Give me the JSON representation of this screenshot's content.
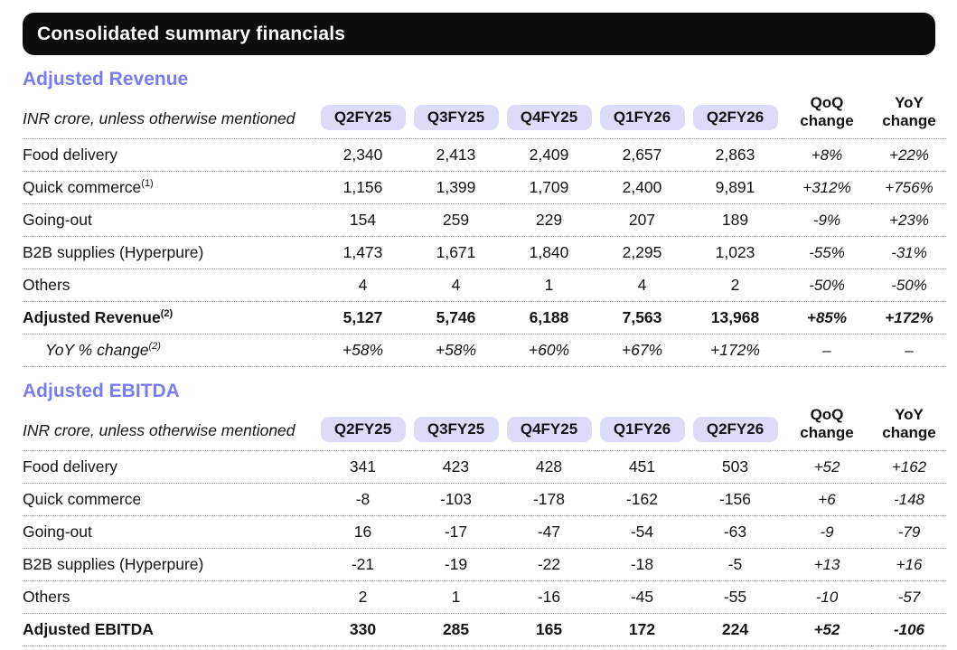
{
  "header": {
    "title": "Consolidated summary financials"
  },
  "colors": {
    "accent_purple": "#7b7bf2",
    "pill_background": "#dcdcf8",
    "title_bar_background": "#0d0d0f",
    "title_bar_text": "#ffffff",
    "body_text": "#141418",
    "divider_dotted": "#9c9c9c"
  },
  "tables": [
    {
      "title": "Adjusted Revenue",
      "unit_note": "INR crore, unless otherwise mentioned",
      "quarter_columns": [
        "Q2FY25",
        "Q3FY25",
        "Q4FY25",
        "Q1FY26",
        "Q2FY26"
      ],
      "change_columns": [
        "QoQ change",
        "YoY change"
      ],
      "rows": [
        {
          "label": "Food delivery",
          "sup": "",
          "values": [
            "2,340",
            "2,413",
            "2,409",
            "2,657",
            "2,863"
          ],
          "qoq": "+8%",
          "yoy": "+22%",
          "style": "normal"
        },
        {
          "label": "Quick commerce",
          "sup": "(1)",
          "values": [
            "1,156",
            "1,399",
            "1,709",
            "2,400",
            "9,891"
          ],
          "qoq": "+312%",
          "yoy": "+756%",
          "style": "normal"
        },
        {
          "label": "Going-out",
          "sup": "",
          "values": [
            "154",
            "259",
            "229",
            "207",
            "189"
          ],
          "qoq": "-9%",
          "yoy": "+23%",
          "style": "normal"
        },
        {
          "label": "B2B supplies (Hyperpure)",
          "sup": "",
          "values": [
            "1,473",
            "1,671",
            "1,840",
            "2,295",
            "1,023"
          ],
          "qoq": "-55%",
          "yoy": "-31%",
          "style": "normal"
        },
        {
          "label": "Others",
          "sup": "",
          "values": [
            "4",
            "4",
            "1",
            "4",
            "2"
          ],
          "qoq": "-50%",
          "yoy": "-50%",
          "style": "normal"
        },
        {
          "label": "Adjusted Revenue",
          "sup": "(2)",
          "values": [
            "5,127",
            "5,746",
            "6,188",
            "7,563",
            "13,968"
          ],
          "qoq": "+85%",
          "yoy": "+172%",
          "style": "total"
        },
        {
          "label": "YoY % change",
          "sup": "(2)",
          "values": [
            "+58%",
            "+58%",
            "+60%",
            "+67%",
            "+172%"
          ],
          "qoq": "–",
          "yoy": "–",
          "style": "subnote"
        }
      ]
    },
    {
      "title": "Adjusted EBITDA",
      "unit_note": "INR crore, unless otherwise mentioned",
      "quarter_columns": [
        "Q2FY25",
        "Q3FY25",
        "Q4FY25",
        "Q1FY26",
        "Q2FY26"
      ],
      "change_columns": [
        "QoQ change",
        "YoY change"
      ],
      "rows": [
        {
          "label": "Food delivery",
          "sup": "",
          "values": [
            "341",
            "423",
            "428",
            "451",
            "503"
          ],
          "qoq": "+52",
          "yoy": "+162",
          "style": "normal"
        },
        {
          "label": "Quick commerce",
          "sup": "",
          "values": [
            "-8",
            "-103",
            "-178",
            "-162",
            "-156"
          ],
          "qoq": "+6",
          "yoy": "-148",
          "style": "normal"
        },
        {
          "label": "Going-out",
          "sup": "",
          "values": [
            "16",
            "-17",
            "-47",
            "-54",
            "-63"
          ],
          "qoq": "-9",
          "yoy": "-79",
          "style": "normal"
        },
        {
          "label": "B2B supplies (Hyperpure)",
          "sup": "",
          "values": [
            "-21",
            "-19",
            "-22",
            "-18",
            "-5"
          ],
          "qoq": "+13",
          "yoy": "+16",
          "style": "normal"
        },
        {
          "label": "Others",
          "sup": "",
          "values": [
            "2",
            "1",
            "-16",
            "-45",
            "-55"
          ],
          "qoq": "-10",
          "yoy": "-57",
          "style": "normal"
        },
        {
          "label": "Adjusted EBITDA",
          "sup": "",
          "values": [
            "330",
            "285",
            "165",
            "172",
            "224"
          ],
          "qoq": "+52",
          "yoy": "-106",
          "style": "total"
        }
      ]
    }
  ]
}
